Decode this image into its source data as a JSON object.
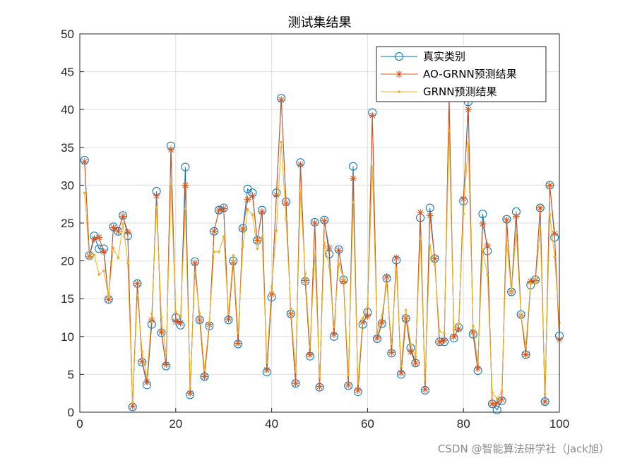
{
  "watermark": "CSDN @智能算法研学社（Jack旭）",
  "chart_data": {
    "type": "line",
    "title": "测试集结果",
    "xlabel": "",
    "ylabel": "",
    "xlim": [
      0,
      100
    ],
    "ylim": [
      0,
      50
    ],
    "xticks": [
      0,
      20,
      40,
      60,
      80,
      100
    ],
    "yticks": [
      0,
      5,
      10,
      15,
      20,
      25,
      30,
      35,
      40,
      45,
      50
    ],
    "grid": true,
    "legend_position": "top-right",
    "x": [
      1,
      2,
      3,
      4,
      5,
      6,
      7,
      8,
      9,
      10,
      11,
      12,
      13,
      14,
      15,
      16,
      17,
      18,
      19,
      20,
      21,
      22,
      23,
      24,
      25,
      26,
      27,
      28,
      29,
      30,
      31,
      32,
      33,
      34,
      35,
      36,
      37,
      38,
      39,
      40,
      41,
      42,
      43,
      44,
      45,
      46,
      47,
      48,
      49,
      50,
      51,
      52,
      53,
      54,
      55,
      56,
      57,
      58,
      59,
      60,
      61,
      62,
      63,
      64,
      65,
      66,
      67,
      68,
      69,
      70,
      71,
      72,
      73,
      74,
      75,
      76,
      77,
      78,
      79,
      80,
      81,
      82,
      83,
      84,
      85,
      86,
      87,
      88,
      89,
      90,
      91,
      92,
      93,
      94,
      95,
      96,
      97,
      98,
      99,
      100
    ],
    "series": [
      {
        "name": "真实类别",
        "color": "#0072BD",
        "marker": "circle",
        "values": [
          33.3,
          20.7,
          23.3,
          21.6,
          21.6,
          14.9,
          24.5,
          23.9,
          26.0,
          23.3,
          0.7,
          17.0,
          6.6,
          3.6,
          11.6,
          29.2,
          10.5,
          6.1,
          35.2,
          12.5,
          11.5,
          32.4,
          2.3,
          19.9,
          12.2,
          4.7,
          11.4,
          23.9,
          26.7,
          27.0,
          12.2,
          20.0,
          9.0,
          24.3,
          29.5,
          29.0,
          22.7,
          26.7,
          5.3,
          15.2,
          29.0,
          41.5,
          27.8,
          13.0,
          3.8,
          33.0,
          17.3,
          7.4,
          25.1,
          3.3,
          25.4,
          20.9,
          10.0,
          21.5,
          17.5,
          3.5,
          32.5,
          2.7,
          11.6,
          13.2,
          39.6,
          9.7,
          11.7,
          17.7,
          7.8,
          20.1,
          5.0,
          12.4,
          8.5,
          6.5,
          25.7,
          2.9,
          27.0,
          20.3,
          9.3,
          9.3,
          41.8,
          9.8,
          11.2,
          27.9,
          41.0,
          10.3,
          5.5,
          26.2,
          21.3,
          1.1,
          0.3,
          1.5,
          25.5,
          15.9,
          26.5,
          12.9,
          7.6,
          16.8,
          17.5,
          27.0,
          1.4,
          30.0,
          23.1,
          10.1
        ]
      },
      {
        "name": "AO-GRNN预测结果",
        "color": "#D95319",
        "marker": "asterisk",
        "values": [
          33.1,
          20.6,
          22.9,
          23.1,
          21.2,
          14.9,
          24.4,
          23.9,
          25.9,
          23.8,
          0.8,
          17.0,
          6.7,
          4.0,
          12.2,
          28.6,
          10.6,
          6.3,
          34.7,
          12.0,
          11.8,
          30.0,
          2.5,
          19.7,
          12.2,
          4.7,
          11.6,
          23.9,
          26.7,
          26.9,
          12.3,
          19.8,
          9.1,
          24.2,
          28.1,
          28.6,
          22.7,
          26.5,
          5.6,
          15.6,
          28.7,
          41.3,
          27.6,
          13.0,
          3.8,
          32.7,
          17.4,
          7.6,
          25.0,
          3.4,
          25.3,
          21.7,
          10.3,
          21.4,
          17.3,
          3.6,
          30.9,
          2.9,
          11.9,
          12.7,
          39.2,
          9.8,
          11.9,
          17.9,
          7.9,
          20.4,
          5.2,
          12.4,
          8.0,
          6.5,
          26.4,
          3.0,
          26.0,
          20.3,
          9.3,
          9.5,
          41.8,
          10.0,
          11.0,
          28.2,
          40.0,
          10.6,
          5.8,
          24.9,
          22.0,
          1.1,
          1.2,
          1.7,
          25.4,
          15.9,
          25.9,
          12.8,
          7.6,
          17.3,
          17.4,
          27.0,
          1.4,
          30.0,
          23.6,
          9.6
        ]
      },
      {
        "name": "GRNN预测结果",
        "color": "#EDB120",
        "marker": "dot",
        "values": [
          29.0,
          20.3,
          20.8,
          18.2,
          18.7,
          15.3,
          21.7,
          20.4,
          24.9,
          19.7,
          1.3,
          15.5,
          8.0,
          4.6,
          13.0,
          27.1,
          12.6,
          7.6,
          30.1,
          13.2,
          12.7,
          26.9,
          3.2,
          18.4,
          13.0,
          5.6,
          11.9,
          21.2,
          21.2,
          23.2,
          13.0,
          20.7,
          10.5,
          21.9,
          26.8,
          26.1,
          21.6,
          23.2,
          6.6,
          16.6,
          24.0,
          35.7,
          25.5,
          13.7,
          5.4,
          29.2,
          18.3,
          8.6,
          20.8,
          4.6,
          22.4,
          19.2,
          11.3,
          19.6,
          17.7,
          4.9,
          27.7,
          3.8,
          12.4,
          13.9,
          32.4,
          10.6,
          12.8,
          17.0,
          9.0,
          19.0,
          6.1,
          13.5,
          9.0,
          7.3,
          22.9,
          4.3,
          22.0,
          19.5,
          10.7,
          10.4,
          37.2,
          10.9,
          11.7,
          26.2,
          35.5,
          11.4,
          6.5,
          21.5,
          18.1,
          2.6,
          1.8,
          2.8,
          22.6,
          15.9,
          23.7,
          12.8,
          8.8,
          17.0,
          17.0,
          24.3,
          2.4,
          26.1,
          20.5,
          11.8
        ]
      }
    ]
  }
}
